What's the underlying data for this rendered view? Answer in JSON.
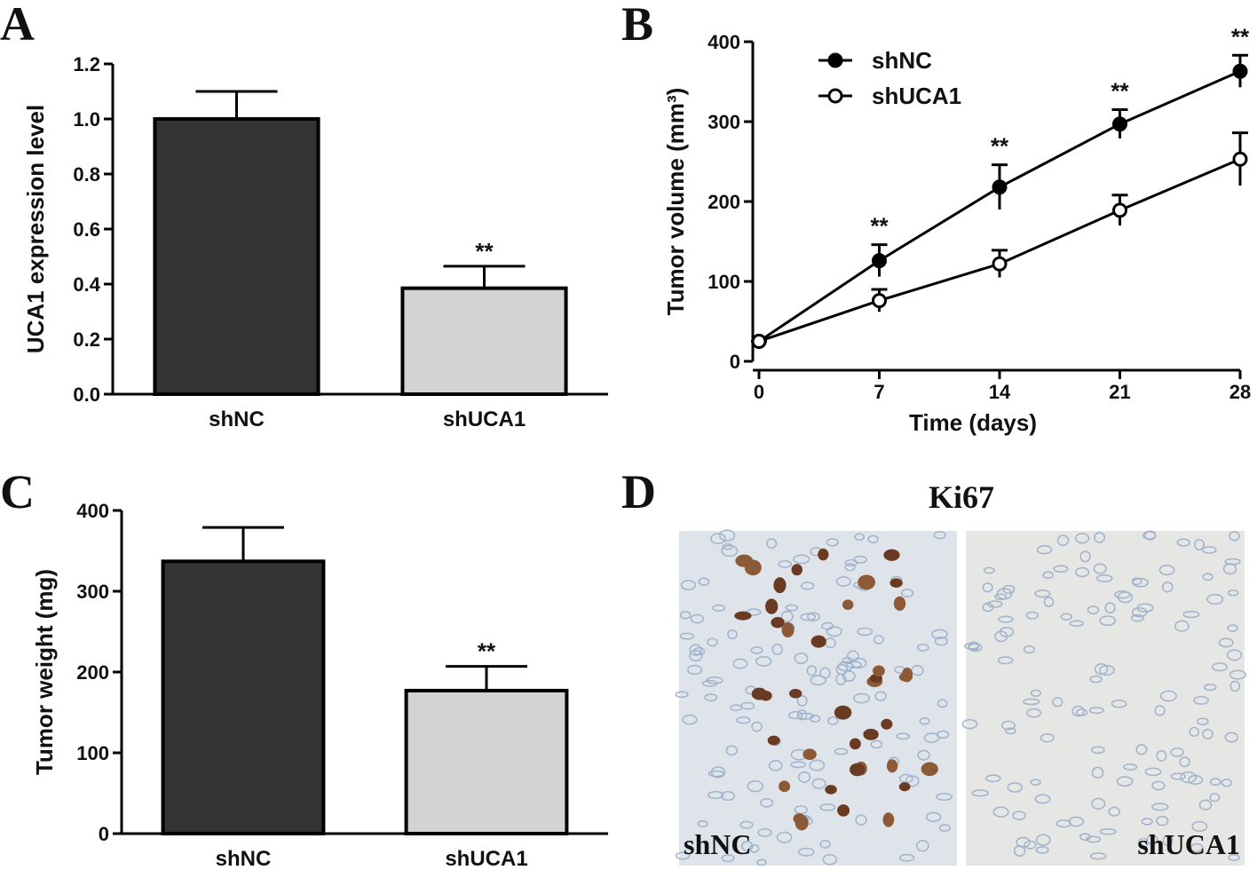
{
  "chart_data": [
    {
      "type": "bar",
      "panel_label": "A",
      "y_label": "UCA1 expression level",
      "categories": [
        "shNC",
        "shUCA1"
      ],
      "values": [
        1.0,
        0.385
      ],
      "errors": [
        0.1,
        0.08
      ],
      "colors": [
        "#333333",
        "#d3d3d3"
      ],
      "ylim": [
        0,
        1.2
      ],
      "yticks": [
        {
          "value": 0,
          "label": "0.0"
        },
        0.2,
        0.4,
        0.6,
        0.8,
        {
          "value": 1,
          "label": "1.0"
        },
        1.2
      ],
      "annotations": [
        {
          "x": "shUCA1",
          "text": "**"
        }
      ]
    },
    {
      "type": "line",
      "panel_label": "B",
      "x_label": "Time (days)",
      "y_label": "Tumor volume (mm³)",
      "x": [
        0,
        7,
        14,
        21,
        28
      ],
      "xlim": [
        0,
        28
      ],
      "xticks": [
        0,
        7,
        14,
        21,
        28
      ],
      "ylim": [
        0,
        400
      ],
      "yticks": [
        0,
        100,
        200,
        300,
        400
      ],
      "legend": "upper left",
      "series": [
        {
          "name": "shNC",
          "color": "#000000",
          "marker_fill": "#000000",
          "values": [
            25,
            126,
            218,
            297,
            363
          ],
          "errors": [
            0,
            20,
            28,
            18,
            20
          ]
        },
        {
          "name": "shUCA1",
          "color": "#000000",
          "marker_fill": "#ffffff",
          "values": [
            25,
            76,
            122,
            189,
            253
          ],
          "errors": [
            0,
            14,
            17,
            19,
            33
          ]
        }
      ],
      "annotations": [
        {
          "x": 7,
          "text": "**"
        },
        {
          "x": 14,
          "text": "**"
        },
        {
          "x": 21,
          "text": "**"
        },
        {
          "x": 28,
          "text": "**"
        }
      ]
    },
    {
      "type": "bar",
      "panel_label": "C",
      "y_label": "Tumor weight (mg)",
      "categories": [
        "shNC",
        "shUCA1"
      ],
      "values": [
        337,
        177
      ],
      "errors": [
        42,
        30
      ],
      "colors": [
        "#333333",
        "#d3d3d3"
      ],
      "ylim": [
        0,
        400
      ],
      "yticks": [
        0,
        100,
        200,
        300,
        400
      ],
      "annotations": [
        {
          "x": "shUCA1",
          "text": "**"
        }
      ]
    }
  ],
  "panel_d": {
    "panel_label": "D",
    "title": "Ki67",
    "image_labels": [
      "shNC",
      "shUCA1"
    ]
  }
}
